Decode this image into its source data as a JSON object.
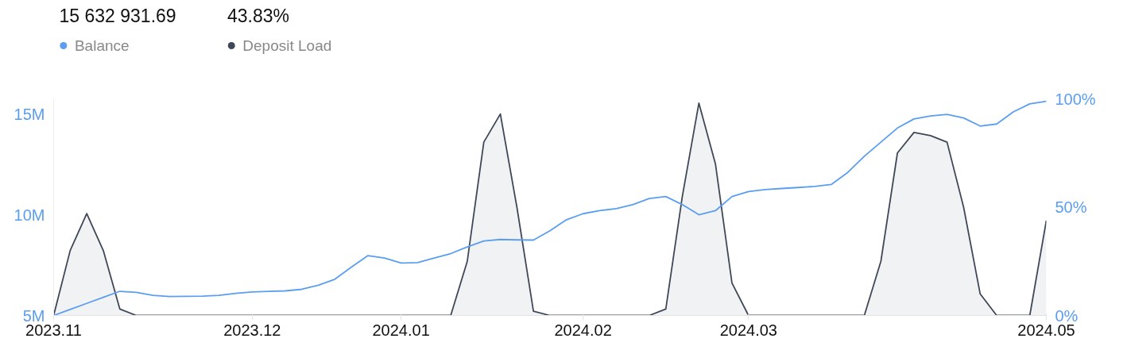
{
  "chart_data": {
    "type": "line",
    "annotations": [
      "15 632 931.69",
      "43.83%"
    ],
    "categories": [
      "2023.11",
      null,
      null,
      null,
      null,
      null,
      null,
      null,
      null,
      null,
      null,
      null,
      "2023.12",
      null,
      null,
      null,
      null,
      null,
      null,
      null,
      null,
      "2024.01",
      null,
      null,
      null,
      null,
      null,
      null,
      null,
      null,
      null,
      null,
      "2024.02",
      null,
      null,
      null,
      null,
      null,
      null,
      null,
      null,
      null,
      "2024.03",
      null,
      null,
      null,
      null,
      null,
      null,
      null,
      null,
      null,
      null,
      null,
      null,
      null,
      null,
      null,
      null,
      null,
      "2024.05"
    ],
    "ylim": [
      5,
      15.75
    ],
    "yticks": [
      {
        "value": 5,
        "label": "5M"
      },
      {
        "value": 10,
        "label": "10M"
      },
      {
        "value": 15,
        "label": "15M"
      }
    ],
    "y2lim": [
      0,
      100
    ],
    "y2ticks": [
      {
        "value": 0,
        "label": "0%"
      },
      {
        "value": 50,
        "label": "50%"
      },
      {
        "value": 100,
        "label": "100%"
      }
    ],
    "grid": false,
    "legend": "top left",
    "series": [
      {
        "name": "Balance",
        "color": "#5b9ef0",
        "values": [
          5.0,
          5.3,
          5.6,
          5.9,
          6.2,
          6.15,
          6.0,
          5.94,
          5.95,
          5.96,
          6.0,
          6.1,
          6.17,
          6.2,
          6.22,
          6.3,
          6.5,
          6.8,
          7.4,
          7.97,
          7.85,
          7.6,
          7.62,
          7.85,
          8.07,
          8.4,
          8.7,
          8.77,
          8.75,
          8.74,
          9.2,
          9.75,
          10.05,
          10.2,
          10.3,
          10.5,
          10.8,
          10.9,
          10.5,
          10.0,
          10.2,
          10.9,
          11.15,
          11.25,
          11.3,
          11.35,
          11.4,
          11.5,
          12.1,
          12.9,
          13.6,
          14.3,
          14.75,
          14.9,
          14.98,
          14.8,
          14.4,
          14.5,
          15.1,
          15.5,
          15.63
        ]
      },
      {
        "name": "Deposit Load",
        "type": "area",
        "axis": "y2",
        "color": "#3f4858",
        "values": [
          0,
          30,
          47,
          30,
          3,
          0,
          0,
          0,
          0,
          0,
          0,
          0,
          0,
          0,
          0,
          0,
          0,
          0,
          0,
          0,
          0,
          0,
          0,
          0,
          0,
          25,
          80,
          93,
          50,
          2,
          0,
          0,
          0,
          0,
          0,
          0,
          0,
          3,
          55,
          98,
          70,
          15,
          0,
          0,
          0,
          0,
          0,
          0,
          0,
          0,
          25,
          75,
          84.5,
          83,
          80,
          50,
          10,
          0,
          0,
          0,
          43.83
        ]
      }
    ]
  }
}
